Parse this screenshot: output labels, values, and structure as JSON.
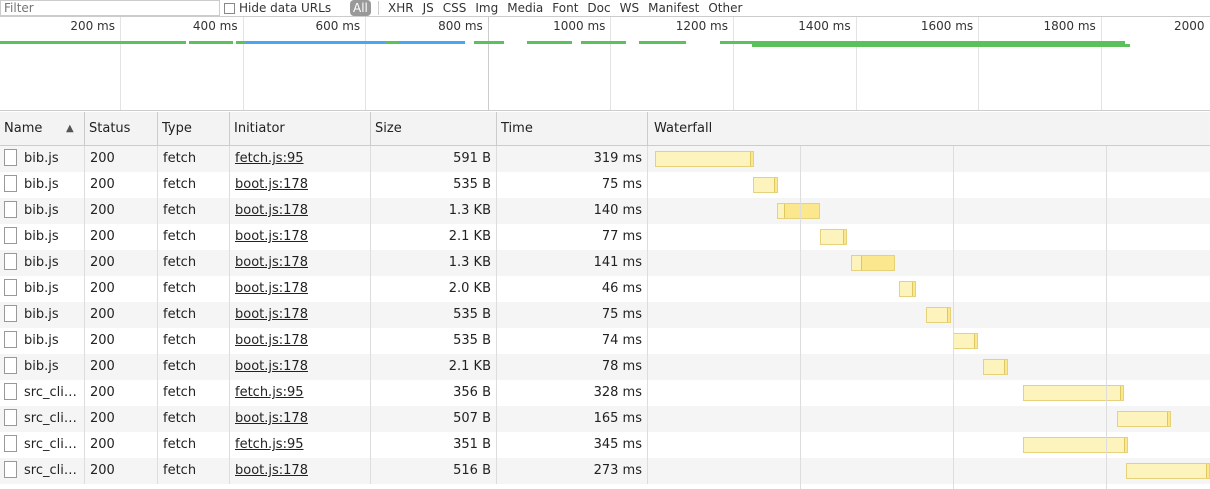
{
  "toolbar": {
    "filter_placeholder": "Filter",
    "hide_data_urls": "Hide data URLs",
    "all": "All",
    "types": [
      "XHR",
      "JS",
      "CSS",
      "Img",
      "Media",
      "Font",
      "Doc",
      "WS",
      "Manifest",
      "Other"
    ]
  },
  "overview": {
    "ticks": [
      "200 ms",
      "400 ms",
      "600 ms",
      "800 ms",
      "1000 ms",
      "1200 ms",
      "1400 ms",
      "1600 ms",
      "1800 ms",
      "2000"
    ],
    "colors": {
      "waiting": "#5cc15c",
      "download": "#4aa6f0"
    }
  },
  "columns": {
    "name": "Name",
    "status": "Status",
    "type": "Type",
    "initiator": "Initiator",
    "size": "Size",
    "time": "Time",
    "waterfall": "Waterfall",
    "sort_indicator": "▲"
  },
  "rows": [
    {
      "name": "bib.js",
      "status": "200",
      "type": "fetch",
      "initiator": "fetch.js:95",
      "size": "591 B",
      "time": "319 ms"
    },
    {
      "name": "bib.js",
      "status": "200",
      "type": "fetch",
      "initiator": "boot.js:178",
      "size": "535 B",
      "time": "75 ms"
    },
    {
      "name": "bib.js",
      "status": "200",
      "type": "fetch",
      "initiator": "boot.js:178",
      "size": "1.3 KB",
      "time": "140 ms"
    },
    {
      "name": "bib.js",
      "status": "200",
      "type": "fetch",
      "initiator": "boot.js:178",
      "size": "2.1 KB",
      "time": "77 ms"
    },
    {
      "name": "bib.js",
      "status": "200",
      "type": "fetch",
      "initiator": "boot.js:178",
      "size": "1.3 KB",
      "time": "141 ms"
    },
    {
      "name": "bib.js",
      "status": "200",
      "type": "fetch",
      "initiator": "boot.js:178",
      "size": "2.0 KB",
      "time": "46 ms"
    },
    {
      "name": "bib.js",
      "status": "200",
      "type": "fetch",
      "initiator": "boot.js:178",
      "size": "535 B",
      "time": "75 ms"
    },
    {
      "name": "bib.js",
      "status": "200",
      "type": "fetch",
      "initiator": "boot.js:178",
      "size": "535 B",
      "time": "74 ms"
    },
    {
      "name": "bib.js",
      "status": "200",
      "type": "fetch",
      "initiator": "boot.js:178",
      "size": "2.1 KB",
      "time": "78 ms"
    },
    {
      "name": "src_cli…",
      "status": "200",
      "type": "fetch",
      "initiator": "fetch.js:95",
      "size": "356 B",
      "time": "328 ms"
    },
    {
      "name": "src_cli…",
      "status": "200",
      "type": "fetch",
      "initiator": "boot.js:178",
      "size": "507 B",
      "time": "165 ms"
    },
    {
      "name": "src_cli…",
      "status": "200",
      "type": "fetch",
      "initiator": "fetch.js:95",
      "size": "351 B",
      "time": "345 ms"
    },
    {
      "name": "src_cli…",
      "status": "200",
      "type": "fetch",
      "initiator": "boot.js:178",
      "size": "516 B",
      "time": "273 ms"
    }
  ]
}
